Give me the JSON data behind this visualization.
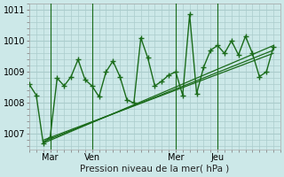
{
  "title": "",
  "xlabel": "Pression niveau de la mer( hPa )",
  "ylabel": "",
  "bg_color": "#cce8e8",
  "grid_color": "#aacccc",
  "line_color": "#1a6b1a",
  "ylim": [
    1006.5,
    1011.2
  ],
  "xlim": [
    0,
    36
  ],
  "yticks": [
    1007,
    1008,
    1009,
    1010,
    1011
  ],
  "xtick_labels": [
    "Mar",
    "Ven",
    "Mer",
    "Jeu"
  ],
  "xtick_positions": [
    3,
    9,
    21,
    27
  ],
  "vline_positions": [
    3,
    9,
    21,
    27
  ],
  "main_x": [
    0,
    1,
    2,
    3,
    4,
    5,
    6,
    7,
    8,
    9,
    10,
    11,
    12,
    13,
    14,
    15,
    16,
    17,
    18,
    19,
    20,
    21,
    22,
    23,
    24,
    25,
    26,
    27,
    28,
    29,
    30,
    31,
    32,
    33,
    34,
    35
  ],
  "main_y": [
    1008.6,
    1008.25,
    1006.7,
    1006.9,
    1008.8,
    1008.55,
    1008.85,
    1009.4,
    1008.75,
    1008.55,
    1008.2,
    1009.0,
    1009.35,
    1008.85,
    1008.1,
    1008.0,
    1010.1,
    1009.45,
    1008.55,
    1008.7,
    1008.9,
    1009.0,
    1008.25,
    1010.85,
    1008.3,
    1009.15,
    1009.7,
    1009.85,
    1009.6,
    1010.0,
    1009.55,
    1010.15,
    1009.6,
    1008.85,
    1009.0,
    1009.8
  ],
  "trend1_x": [
    2,
    35
  ],
  "trend1_y": [
    1006.8,
    1009.6
  ],
  "trend2_x": [
    2,
    35
  ],
  "trend2_y": [
    1006.75,
    1009.7
  ],
  "trend3_x": [
    2,
    35
  ],
  "trend3_y": [
    1006.7,
    1009.85
  ]
}
